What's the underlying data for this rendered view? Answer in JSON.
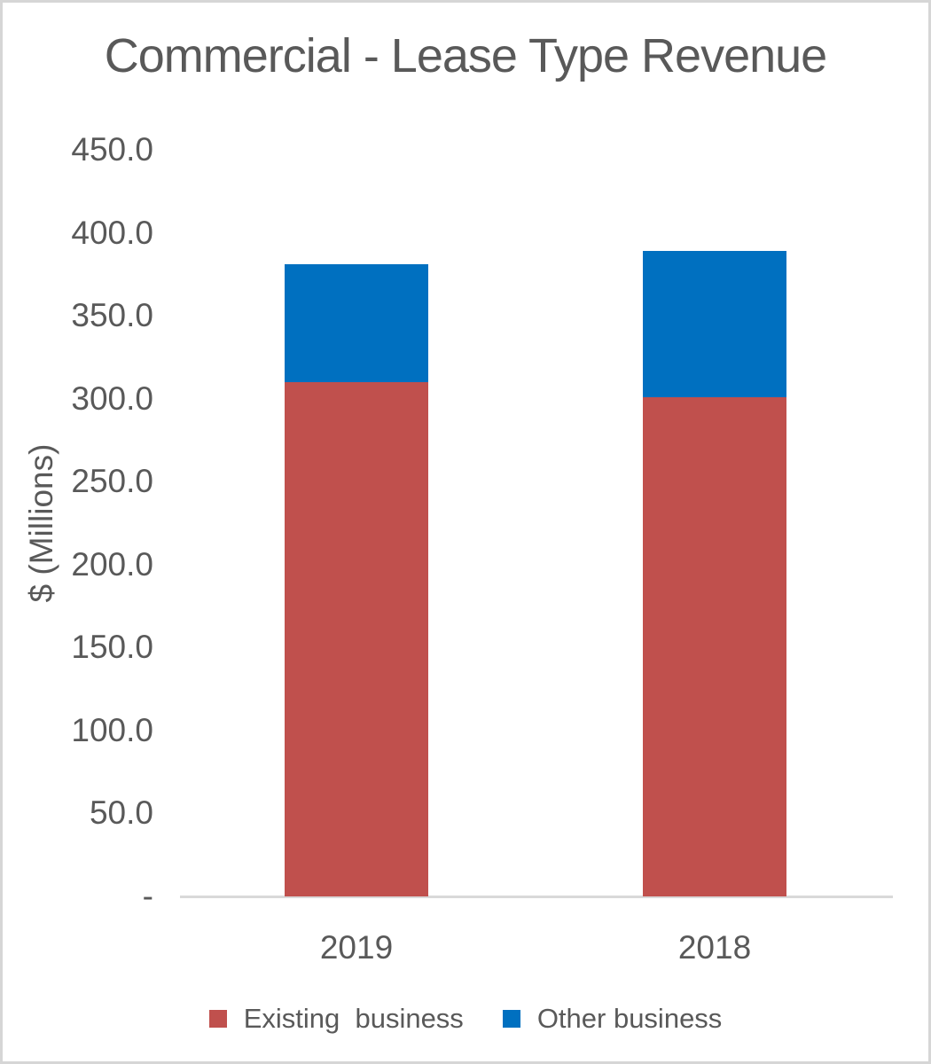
{
  "chart": {
    "title": "Commercial - Lease Type Revenue",
    "y_axis_title": "$ (Millions)",
    "text_color": "#595959",
    "axis_line_color": "#d9d9d9"
  },
  "chart_data": {
    "type": "bar",
    "stacked": true,
    "title": "Commercial - Lease Type Revenue",
    "xlabel": "",
    "ylabel": "$ (Millions)",
    "categories": [
      "2019",
      "2018"
    ],
    "series": [
      {
        "name": "Existing  business",
        "color": "#C0504D",
        "values": [
          310,
          301
        ]
      },
      {
        "name": "Other business",
        "color": "#0070C0",
        "values": [
          71,
          88
        ]
      }
    ],
    "totals": [
      381,
      389
    ],
    "ylim": [
      0,
      450
    ],
    "ytick_interval": 50,
    "ytick_labels": [
      "-",
      "50.0",
      "100.0",
      "150.0",
      "200.0",
      "250.0",
      "300.0",
      "350.0",
      "400.0",
      "450.0"
    ],
    "grid": false,
    "legend_position": "bottom"
  }
}
